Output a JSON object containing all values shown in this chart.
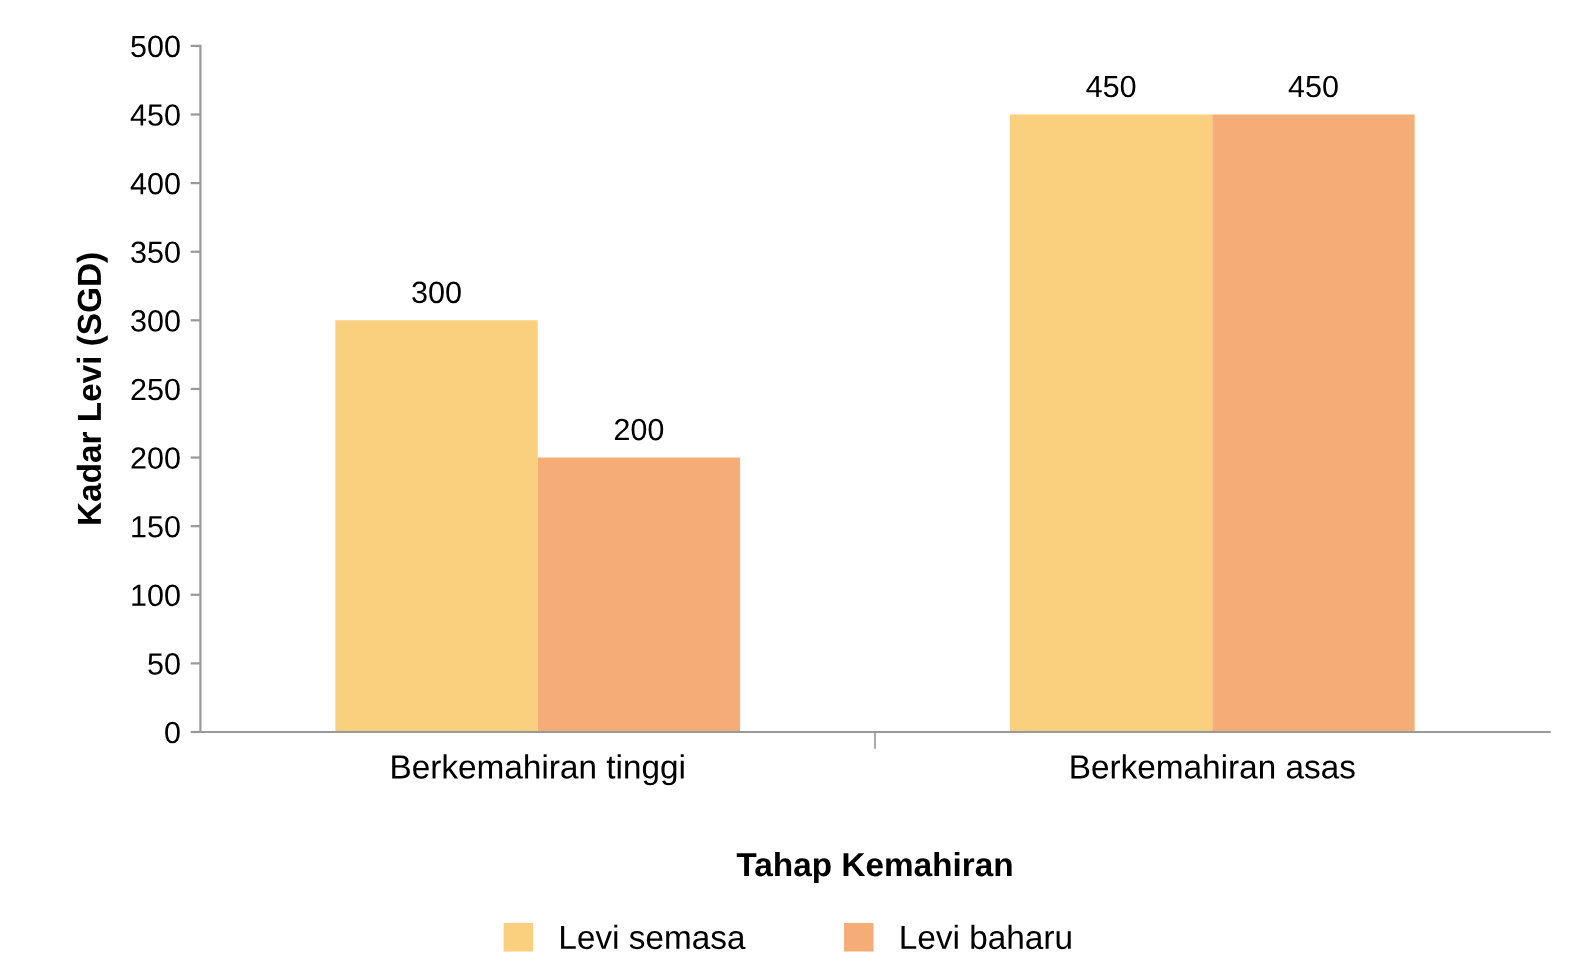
{
  "chart_data": {
    "type": "bar",
    "xlabel": "Tahap Kemahiran",
    "ylabel": "Kadar Levi (SGD)",
    "categories": [
      "Berkemahiran tinggi",
      "Berkemahiran asas"
    ],
    "series": [
      {
        "name": "Levi semasa",
        "color": "#fad07e",
        "values": [
          300,
          450
        ]
      },
      {
        "name": "Levi baharu",
        "color": "#f5ad78",
        "values": [
          200,
          450
        ]
      }
    ],
    "ylim": [
      0,
      500
    ],
    "yticks": [
      0,
      50,
      100,
      150,
      200,
      250,
      300,
      350,
      400,
      450,
      500
    ],
    "data_labels": true,
    "grid": false,
    "legend": "bottom"
  }
}
